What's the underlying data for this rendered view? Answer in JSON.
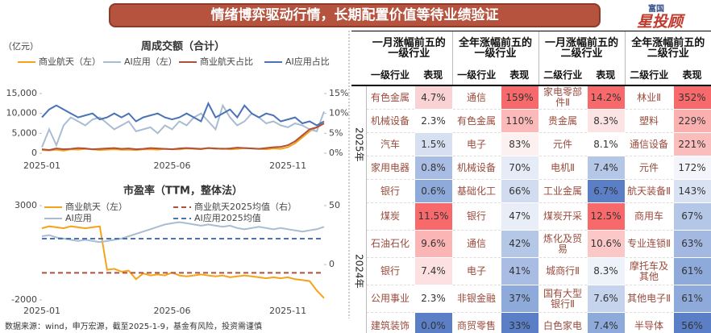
{
  "header": {
    "title": "情绪博弈驱动行情，长期配置价值等待业绩验证",
    "logo_top": "富国",
    "logo_main": "星投顾"
  },
  "chart_data": [
    {
      "type": "line",
      "title": "周成交额（合计）",
      "y_label": "（亿元）",
      "categories": [
        "2025-01",
        null,
        null,
        null,
        null,
        null,
        null,
        null,
        null,
        null,
        null,
        null,
        null,
        null,
        null,
        null,
        null,
        null,
        "2025-06",
        null,
        null,
        null,
        null,
        null,
        null,
        null,
        null,
        null,
        null,
        null,
        null,
        null,
        null,
        null,
        "2025-11",
        null,
        null,
        null,
        null,
        null
      ],
      "ylim": [
        0,
        15000
      ],
      "yticks": [
        0,
        {
          "value": 5000,
          "label": "5,000"
        },
        {
          "value": 10000,
          "label": "10,000"
        },
        {
          "value": 15000,
          "label": "15,000"
        }
      ],
      "y2lim": [
        0,
        15
      ],
      "y2ticks": [
        {
          "value": 0,
          "label": "0%"
        },
        {
          "value": 5,
          "label": "5%"
        },
        {
          "value": 10,
          "label": "10%"
        },
        {
          "value": 15,
          "label": "15%"
        }
      ],
      "series": [
        {
          "name": "商业航天（左）",
          "color": "#f5a31a",
          "values": [
            800,
            700,
            900,
            650,
            1000,
            900,
            1100,
            950,
            800,
            900,
            1000,
            850,
            900,
            800,
            950,
            1000,
            900,
            1100,
            1000,
            950,
            1200,
            1100,
            1000,
            1300,
            1100,
            1200,
            1000,
            1100,
            1300,
            1200,
            1100,
            1000,
            1200,
            1100,
            1500,
            2500,
            4000,
            5500,
            6500,
            7500
          ]
        },
        {
          "name": "AI应用（左）",
          "color": "#a9bcd2",
          "values": [
            1500,
            6000,
            2000,
            7000,
            9000,
            8000,
            7000,
            8500,
            9000,
            7500,
            6000,
            7000,
            8000,
            5500,
            6000,
            6500,
            5000,
            7000,
            6000,
            8000,
            7000,
            9000,
            10000,
            8000,
            6000,
            12000,
            9000,
            7000,
            8000,
            10000,
            9000,
            7500,
            8000,
            7000,
            6500,
            7500,
            7000,
            6000,
            5500,
            10500
          ]
        },
        {
          "name": "商业航天占比",
          "color": "#b0503c",
          "axis": "y2",
          "values": [
            1.0,
            0.8,
            1.2,
            1.0,
            1.1,
            1.3,
            1.2,
            1.0,
            1.1,
            1.2,
            1.3,
            1.1,
            1.2,
            1.0,
            1.1,
            1.3,
            1.2,
            1.1,
            1.0,
            1.2,
            1.3,
            1.2,
            1.1,
            1.3,
            1.2,
            1.1,
            1.2,
            1.4,
            1.3,
            1.2,
            1.1,
            1.3,
            1.5,
            1.6,
            2.0,
            3.0,
            4.5,
            6.0,
            6.5,
            7.5
          ]
        },
        {
          "name": "AI应用占比",
          "color": "#4a72b8",
          "axis": "y2",
          "values": [
            9,
            11,
            12,
            11,
            10,
            9,
            9.5,
            10,
            8.5,
            9,
            10,
            9,
            10,
            8,
            9,
            9.5,
            10,
            9,
            8.5,
            9,
            10,
            9,
            8,
            12.5,
            9,
            10,
            11,
            9,
            12,
            10,
            9,
            10,
            9.5,
            8,
            8.5,
            9,
            7.5,
            8,
            7,
            8
          ]
        }
      ]
    },
    {
      "type": "line",
      "title": "市盈率（TTM，整体法）",
      "categories": [
        "2025-01",
        null,
        null,
        null,
        null,
        null,
        null,
        null,
        null,
        null,
        null,
        null,
        null,
        null,
        null,
        null,
        null,
        null,
        "2025-06",
        null,
        null,
        null,
        null,
        null,
        null,
        null,
        null,
        null,
        null,
        null,
        null,
        null,
        null,
        null,
        "2025-11",
        null,
        null,
        null,
        null,
        null
      ],
      "ylim": [
        -2000,
        3000
      ],
      "yticks": [
        -2000,
        3000
      ],
      "y2lim": [
        -30,
        50
      ],
      "y2ticks": [
        0,
        50
      ],
      "series": [
        {
          "name": "商业航天（左）",
          "color": "#f5a31a",
          "values": [
            1800,
            1900,
            1850,
            1800,
            1900,
            1850,
            1800,
            1850,
            1900,
            -400,
            -350,
            -500,
            -450,
            -900,
            -600,
            -700,
            -650,
            -700,
            -550,
            -700,
            -750,
            -700,
            -650,
            -700,
            -750,
            -700,
            -800,
            -750,
            -700,
            -750,
            -800,
            -850,
            -800,
            -850,
            -800,
            -900,
            -950,
            -1000,
            -1500,
            -1900
          ]
        },
        {
          "name": "商业航天2025均值（右）",
          "color": "#b0503c",
          "axis": "y2",
          "dashed": true,
          "value": -7
        },
        {
          "name": "AI应用",
          "color": "#a9bcd2",
          "axis": "y2",
          "values": [
            24,
            25,
            23,
            22,
            21,
            20,
            21,
            20,
            19,
            20,
            21,
            22,
            24,
            26,
            28,
            30,
            32,
            34,
            35,
            36,
            35,
            34,
            33,
            34,
            33,
            32,
            33,
            31,
            30,
            31,
            32,
            31,
            30,
            31,
            30,
            29,
            28,
            29,
            30,
            32
          ]
        },
        {
          "name": "AI应用2025均值",
          "color": "#4a72b8",
          "axis": "y2",
          "dashed": true,
          "value": 22
        }
      ]
    }
  ],
  "table": {
    "groups": [
      "一月涨幅前五的一级行业",
      "全年涨幅前五的一级行业",
      "一月涨幅前五的二级行业",
      "全年涨幅前五的二级行业"
    ],
    "subheaders": [
      "一级行业",
      "表现",
      "一级行业",
      "表现",
      "二级行业",
      "表现",
      "二级行业",
      "表现"
    ],
    "sections": [
      {
        "label": "2025年",
        "rows": [
          {
            "cells": [
              "有色金属",
              "4.7%",
              "通信",
              "159%",
              "家电零部件Ⅱ",
              "14.2%",
              "林业Ⅱ",
              "352%"
            ],
            "colors": [
              "#f9d3d3",
              "#f8696b",
              "#f8696b",
              "#f8696b"
            ]
          },
          {
            "cells": [
              "机械设备",
              "2.3%",
              "有色金属",
              "110%",
              "贵金属",
              "8.3%",
              "塑料",
              "229%"
            ],
            "colors": [
              "#ffffff",
              "#fbb9b9",
              "#fde4e4",
              "#fbb0b0"
            ]
          },
          {
            "cells": [
              "汽车",
              "1.5%",
              "电子",
              "83%",
              "元件",
              "8.1%",
              "通信设备",
              "221%"
            ],
            "colors": [
              "#d6e0f1",
              "#fdf0f0",
              "#ffffff",
              "#fbbcbc"
            ]
          },
          {
            "cells": [
              "家用电器",
              "0.8%",
              "机械设备",
              "70%",
              "电机Ⅱ",
              "7.4%",
              "元件",
              "172%"
            ],
            "colors": [
              "#a9bde4",
              "#e6ecf7",
              "#b4c7e7",
              "#f3f5fb"
            ]
          },
          {
            "cells": [
              "银行",
              "0.6%",
              "基础化工",
              "66%",
              "工业金属",
              "6.7%",
              "航天装备Ⅱ",
              "143%"
            ],
            "colors": [
              "#8eaadb",
              "#d2dcf0",
              "#5b7fc7",
              "#d9e2f3"
            ]
          }
        ]
      },
      {
        "label": "2024年",
        "rows": [
          {
            "cells": [
              "煤炭",
              "11.5%",
              "银行",
              "47%",
              "煤炭开采",
              "12.5%",
              "商用车",
              "67%"
            ],
            "colors": [
              "#f8696b",
              "#e8edf7",
              "#f8696b",
              "#b4c7e7"
            ]
          },
          {
            "cells": [
              "石油石化",
              "9.6%",
              "通信",
              "42%",
              "炼化及贸易",
              "10.6%",
              "专业连锁Ⅱ",
              "63%"
            ],
            "colors": [
              "#fbb5b5",
              "#b4c7e7",
              "#fbc7c7",
              "#a3b9e2"
            ]
          },
          {
            "cells": [
              "银行",
              "7.4%",
              "电子",
              "41%",
              "城商行Ⅱ",
              "8.3%",
              "摩托车及其他",
              "61%"
            ],
            "colors": [
              "#fde0e0",
              "#a9bde4",
              "#eef2fa",
              "#8eaadb"
            ]
          },
          {
            "cells": [
              "公用事业",
              "2.3%",
              "非银金融",
              "37%",
              "国有大型银行Ⅱ",
              "7.6%",
              "其他电子Ⅱ",
              "61%"
            ],
            "colors": [
              "#ffffff",
              "#8eaadb",
              "#c5d3ec",
              "#8eaadb"
            ]
          },
          {
            "cells": [
              "建筑装饰",
              "0.0%",
              "商贸零售",
              "33%",
              "白色家电",
              "7.4%",
              "半导体",
              "56%"
            ],
            "colors": [
              "#5b7fc7",
              "#5b7fc7",
              "#8eaadb",
              "#5b7fc7"
            ]
          }
        ]
      }
    ]
  },
  "source": "数据来源：wind，申万宏源，截至2025-1-9，基金有风险，投资需谨慎"
}
